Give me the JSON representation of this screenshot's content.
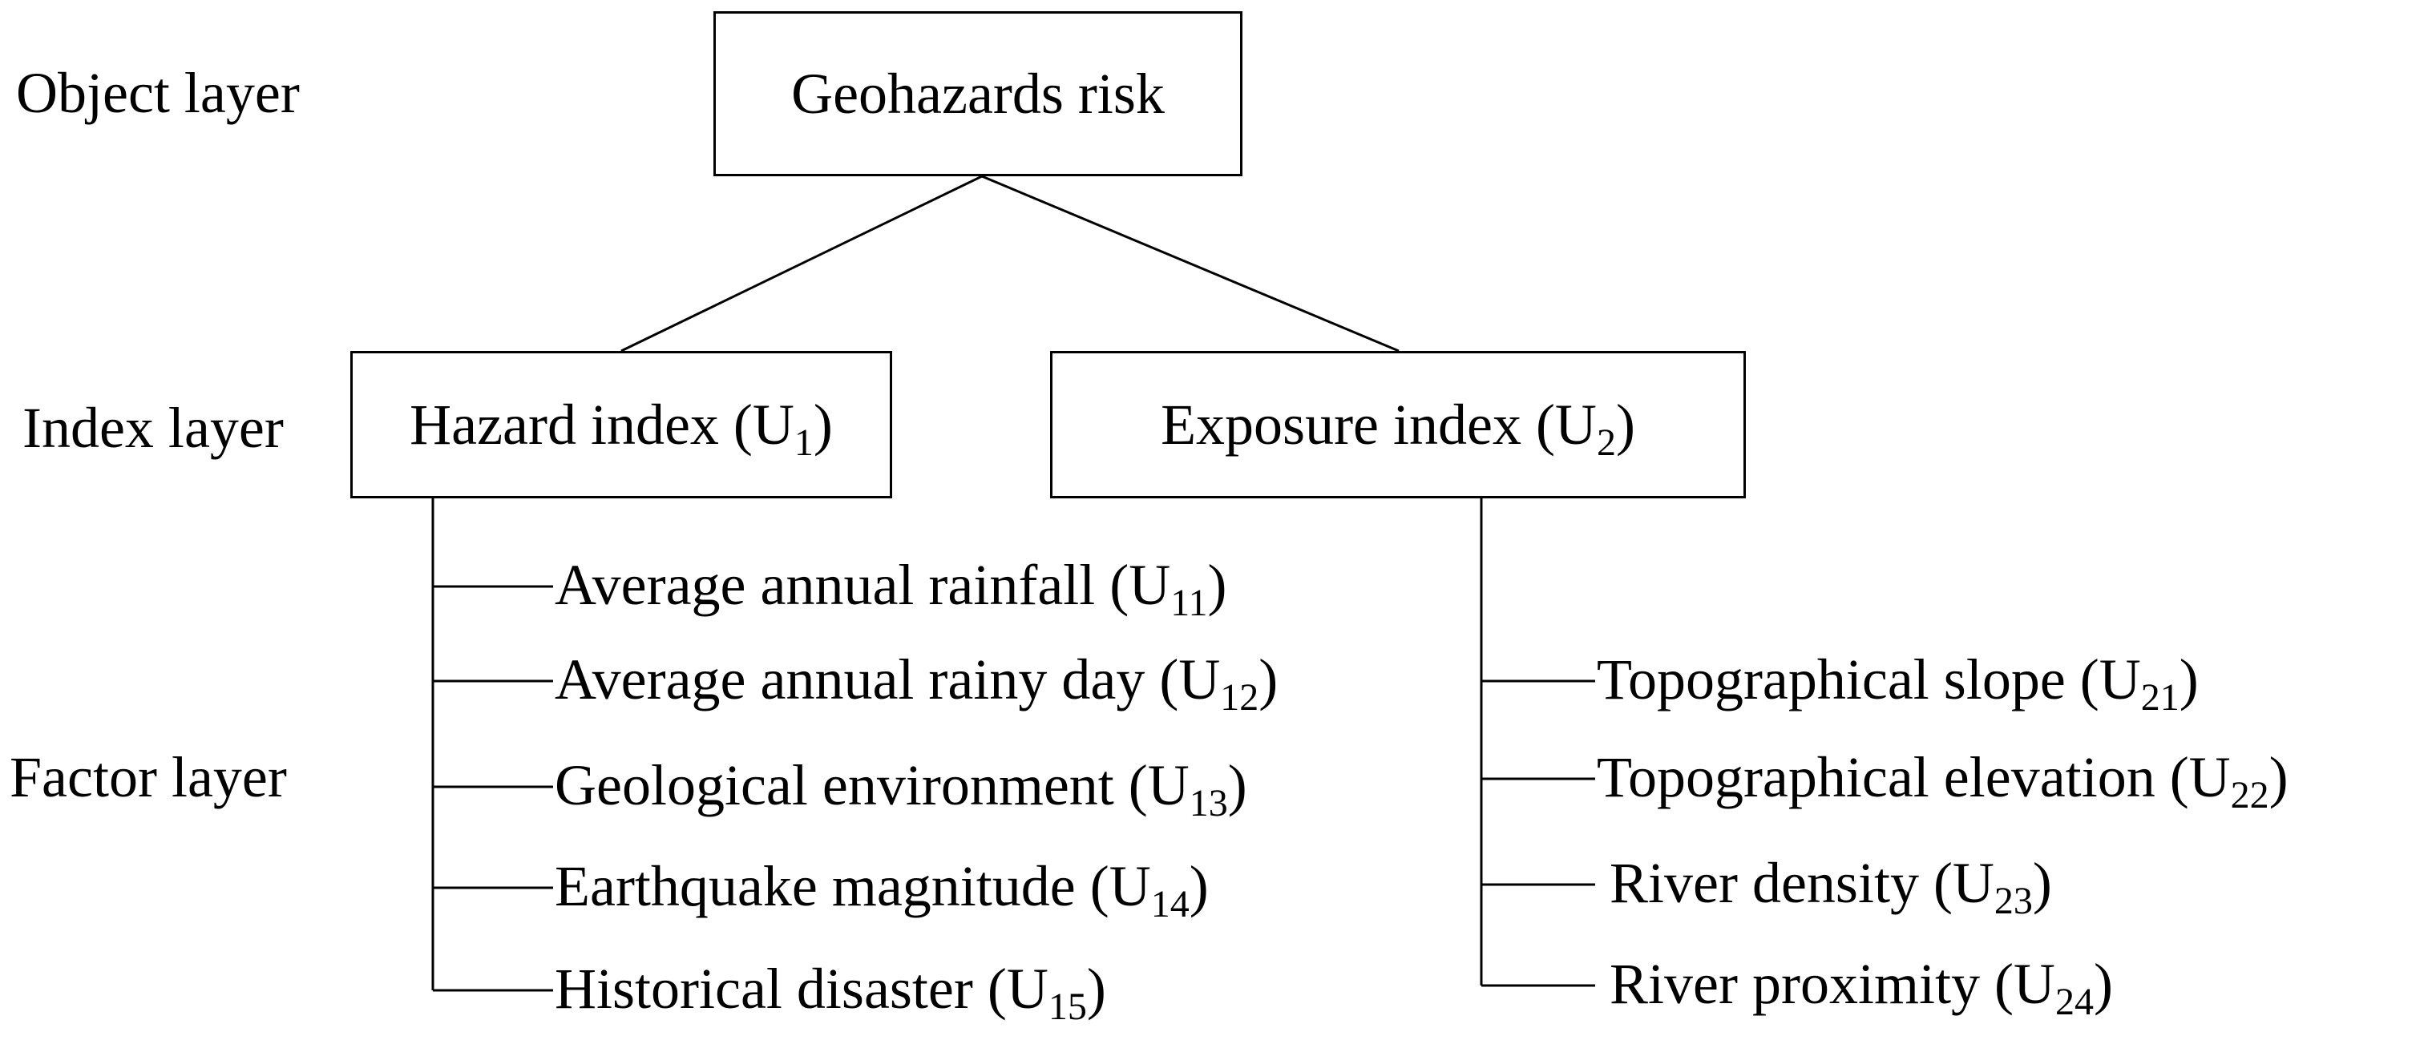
{
  "layers": {
    "object": "Object layer",
    "index": "Index layer",
    "factor": "Factor layer"
  },
  "object_node": "Geohazards risk",
  "index_nodes": [
    {
      "label": "Hazard index (U",
      "sub": "1",
      "close": ")"
    },
    {
      "label": "Exposure index (U",
      "sub": "2",
      "close": ")"
    }
  ],
  "hazard_factors": [
    {
      "label": "Average annual rainfall  (U",
      "sub": "11",
      "close": ")"
    },
    {
      "label": "Average annual rainy day (U",
      "sub": "12",
      "close": ")"
    },
    {
      "label": "Geological environment (U",
      "sub": "13",
      "close": ")"
    },
    {
      "label": "Earthquake magnitude (U",
      "sub": "14",
      "close": ")"
    },
    {
      "label": "Historical disaster (U",
      "sub": "15",
      "close": ")"
    }
  ],
  "exposure_factors": [
    {
      "label": "Topographical slope (U",
      "sub": "21",
      "close": ")"
    },
    {
      "label": "Topographical elevation (U",
      "sub": "22",
      "close": ")"
    },
    {
      "label": "River density (U",
      "sub": "23",
      "close": ")"
    },
    {
      "label": "River proximity (U",
      "sub": "24",
      "close": ")"
    }
  ]
}
